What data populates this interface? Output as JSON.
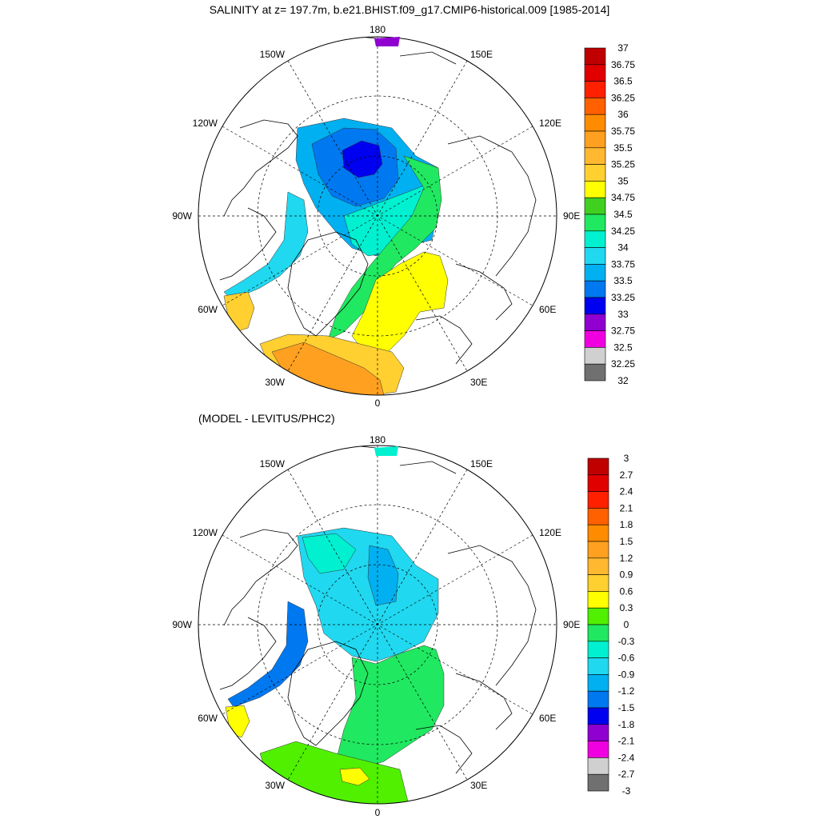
{
  "figure": {
    "title": "SALINITY at z= 197.7m, b.e21.BHIST.f09_g17.CMIP6-historical.009 [1985-2014]",
    "subtitle": "(MODEL - LEVITUS/PHC2)"
  },
  "map_labels": {
    "top": "180",
    "bottom": "0",
    "left": "90W",
    "right": "90E",
    "upper_left_1": "150W",
    "upper_left_2": "120W",
    "lower_left_1": "60W",
    "lower_left_2": "30W",
    "upper_right_1": "150E",
    "upper_right_2": "120E",
    "lower_right_1": "60E",
    "lower_right_2": "30E"
  },
  "colorbar1": {
    "labels": [
      "37",
      "36.75",
      "36.5",
      "36.25",
      "36",
      "35.75",
      "35.5",
      "35.25",
      "35",
      "34.75",
      "34.5",
      "34.25",
      "34",
      "33.75",
      "33.5",
      "33.25",
      "33",
      "32.75",
      "32.5",
      "32.25",
      "32"
    ],
    "colors": [
      "#c00000",
      "#e00000",
      "#ff2000",
      "#ff6000",
      "#ff8c00",
      "#ffa020",
      "#ffb830",
      "#ffd030",
      "#ffff00",
      "#40d020",
      "#20e860",
      "#00f0d0",
      "#20d8f0",
      "#00b0f0",
      "#0078f0",
      "#0000f0",
      "#9000d0",
      "#f000e0",
      "#d0d0d0",
      "#707070"
    ]
  },
  "colorbar2": {
    "labels": [
      "3",
      "2.7",
      "2.4",
      "2.1",
      "1.8",
      "1.5",
      "1.2",
      "0.9",
      "0.6",
      "0.3",
      "0",
      "-0.3",
      "-0.6",
      "-0.9",
      "-1.2",
      "-1.5",
      "-1.8",
      "-2.1",
      "-2.4",
      "-2.7",
      "-3"
    ],
    "colors": [
      "#c00000",
      "#e00000",
      "#ff2000",
      "#ff6000",
      "#ff8c00",
      "#ffa020",
      "#ffb830",
      "#ffd030",
      "#ffff00",
      "#50f000",
      "#20e860",
      "#00f0d0",
      "#20d8f0",
      "#00b0f0",
      "#0078f0",
      "#0000f0",
      "#9000d0",
      "#f000e0",
      "#d0d0d0",
      "#707070"
    ]
  },
  "map1_fields": {
    "beaufort_core": "#0000f0",
    "beaufort_mid": "#0078f0",
    "arctic_basin": "#00b0f0",
    "eurasian": "#00f0d0",
    "atlantic_inflow": "#20e860",
    "barents": "#ffff00",
    "nordic": "#ffd030",
    "norwegian": "#ffa020",
    "greenland_shelf": "#20d8f0"
  },
  "map2_fields": {
    "beaufort_core": "#00b0f0",
    "arctic_basin": "#20d8f0",
    "eurasian": "#00f0d0",
    "atlantic": "#20e860",
    "nordic": "#50f000",
    "spot": "#ffff00",
    "baffin_neg": "#0078f0"
  }
}
